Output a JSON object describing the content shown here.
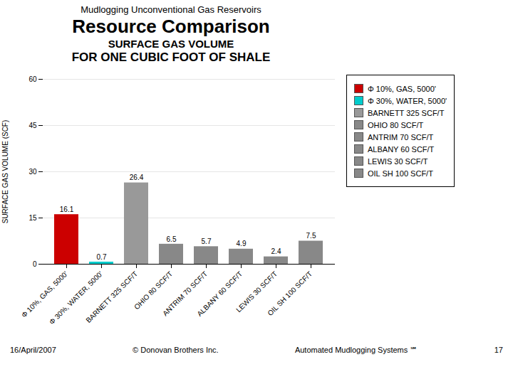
{
  "chart_data": {
    "type": "bar",
    "title": [
      "Mudlogging Unconventional Gas Reservoirs",
      "Resource Comparison",
      "SURFACE GAS VOLUME",
      "FOR ONE CUBIC FOOT OF SHALE"
    ],
    "ylabel": "SURFACE GAS VOLUME (SCF)",
    "categories": [
      "Φ 10%, GAS, 5000'",
      "Φ 30%, WATER, 5000'",
      "BARNETT 325 SCF/T",
      "OHIO 80 SCF/T",
      "ANTRIM 70 SCF/T",
      "ALBANY 60 SCF/T",
      "LEWIS 30 SCF/T",
      "OIL SH 100 SCF/T"
    ],
    "values": [
      16.1,
      0.7,
      26.4,
      6.5,
      5.7,
      4.9,
      2.4,
      7.5
    ],
    "colors": [
      "#cc0000",
      "#00cccc",
      "#999999",
      "#888888",
      "#888888",
      "#888888",
      "#888888",
      "#888888"
    ],
    "ylim": [
      0,
      60
    ],
    "yticks": [
      0,
      15,
      30,
      45,
      60
    ],
    "grid": true,
    "data_labels": true,
    "legend": "right",
    "annotations": [
      "16/April/2007",
      "© Donovan Brothers Inc.",
      "Automated Mudlogging Systems ℠",
      "17"
    ]
  }
}
